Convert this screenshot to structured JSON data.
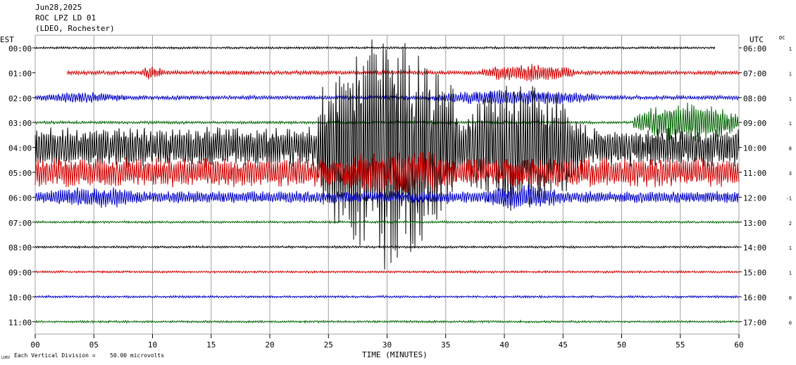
{
  "header": {
    "date": "Jun28,2025",
    "station": "ROC LPZ LD 01",
    "network": "(LDEO, Rochester)"
  },
  "left_axis_title": "EST",
  "right_axis_title": "UTC",
  "dc_title": "DC",
  "footer": {
    "xlabel": "TIME (MINUTES)",
    "scale_prefix": "LDEO",
    "scale_text": "Each Vertical Division =",
    "scale_value": "50.00 microvolts"
  },
  "colors": {
    "grid": "#a0a0a0",
    "trace_cycle": [
      "#000000",
      "#d00000",
      "#0000c8",
      "#006400"
    ]
  },
  "chart_data": {
    "type": "line",
    "title": "ROC LPZ LD 01",
    "xlabel": "TIME (MINUTES)",
    "xlim": [
      0,
      60
    ],
    "x_ticks": [
      "00",
      "05",
      "10",
      "15",
      "20",
      "25",
      "30",
      "35",
      "40",
      "45",
      "50",
      "55",
      "60"
    ],
    "rows": [
      {
        "est": "00:00",
        "utc": "06:00",
        "dc": "1",
        "color": "black",
        "amp": 1.5,
        "start": 0,
        "end": 58,
        "bursts": []
      },
      {
        "est": "01:00",
        "utc": "07:00",
        "dc": "1",
        "color": "red",
        "amp": 3,
        "start": 2.7,
        "end": 60,
        "bursts": [
          {
            "t0": 9,
            "t1": 11,
            "amp": 10
          },
          {
            "t0": 38,
            "t1": 46,
            "amp": 14
          }
        ]
      },
      {
        "est": "02:00",
        "utc": "08:00",
        "dc": "1",
        "color": "blue",
        "amp": 3,
        "start": 0,
        "end": 60,
        "bursts": [
          {
            "t0": 0,
            "t1": 8,
            "amp": 8
          },
          {
            "t0": 34,
            "t1": 48,
            "amp": 12
          }
        ]
      },
      {
        "est": "03:00",
        "utc": "09:00",
        "dc": "1",
        "color": "green",
        "amp": 2,
        "start": 0,
        "end": 60,
        "bursts": [
          {
            "t0": 51,
            "t1": 60,
            "amp": 30
          }
        ]
      },
      {
        "est": "04:00",
        "utc": "10:00",
        "dc": "8",
        "color": "black",
        "amp": 30,
        "start": 0,
        "end": 60,
        "bursts": [
          {
            "t0": 24,
            "t1": 36,
            "amp": 180
          },
          {
            "t0": 36,
            "t1": 47,
            "amp": 95
          }
        ]
      },
      {
        "est": "05:00",
        "utc": "11:00",
        "dc": "3",
        "color": "red",
        "amp": 22,
        "start": 0,
        "end": 60,
        "bursts": [
          {
            "t0": 25,
            "t1": 37,
            "amp": 35
          }
        ]
      },
      {
        "est": "06:00",
        "utc": "12:00",
        "dc": "-1",
        "color": "blue",
        "amp": 9,
        "start": 0,
        "end": 60,
        "bursts": [
          {
            "t0": 0,
            "t1": 10,
            "amp": 16
          },
          {
            "t0": 38,
            "t1": 45,
            "amp": 20
          }
        ]
      },
      {
        "est": "07:00",
        "utc": "13:00",
        "dc": "2",
        "color": "green",
        "amp": 1.5,
        "start": 0,
        "end": 60,
        "bursts": []
      },
      {
        "est": "08:00",
        "utc": "14:00",
        "dc": "1",
        "color": "black",
        "amp": 1.5,
        "start": 0,
        "end": 60,
        "bursts": []
      },
      {
        "est": "09:00",
        "utc": "15:00",
        "dc": "1",
        "color": "red",
        "amp": 1.5,
        "start": 0,
        "end": 60,
        "bursts": []
      },
      {
        "est": "10:00",
        "utc": "16:00",
        "dc": "0",
        "color": "blue",
        "amp": 1.5,
        "start": 0,
        "end": 60,
        "bursts": []
      },
      {
        "est": "11:00",
        "utc": "17:00",
        "dc": "0",
        "color": "green",
        "amp": 1.5,
        "start": 0,
        "end": 60,
        "bursts": []
      }
    ]
  }
}
